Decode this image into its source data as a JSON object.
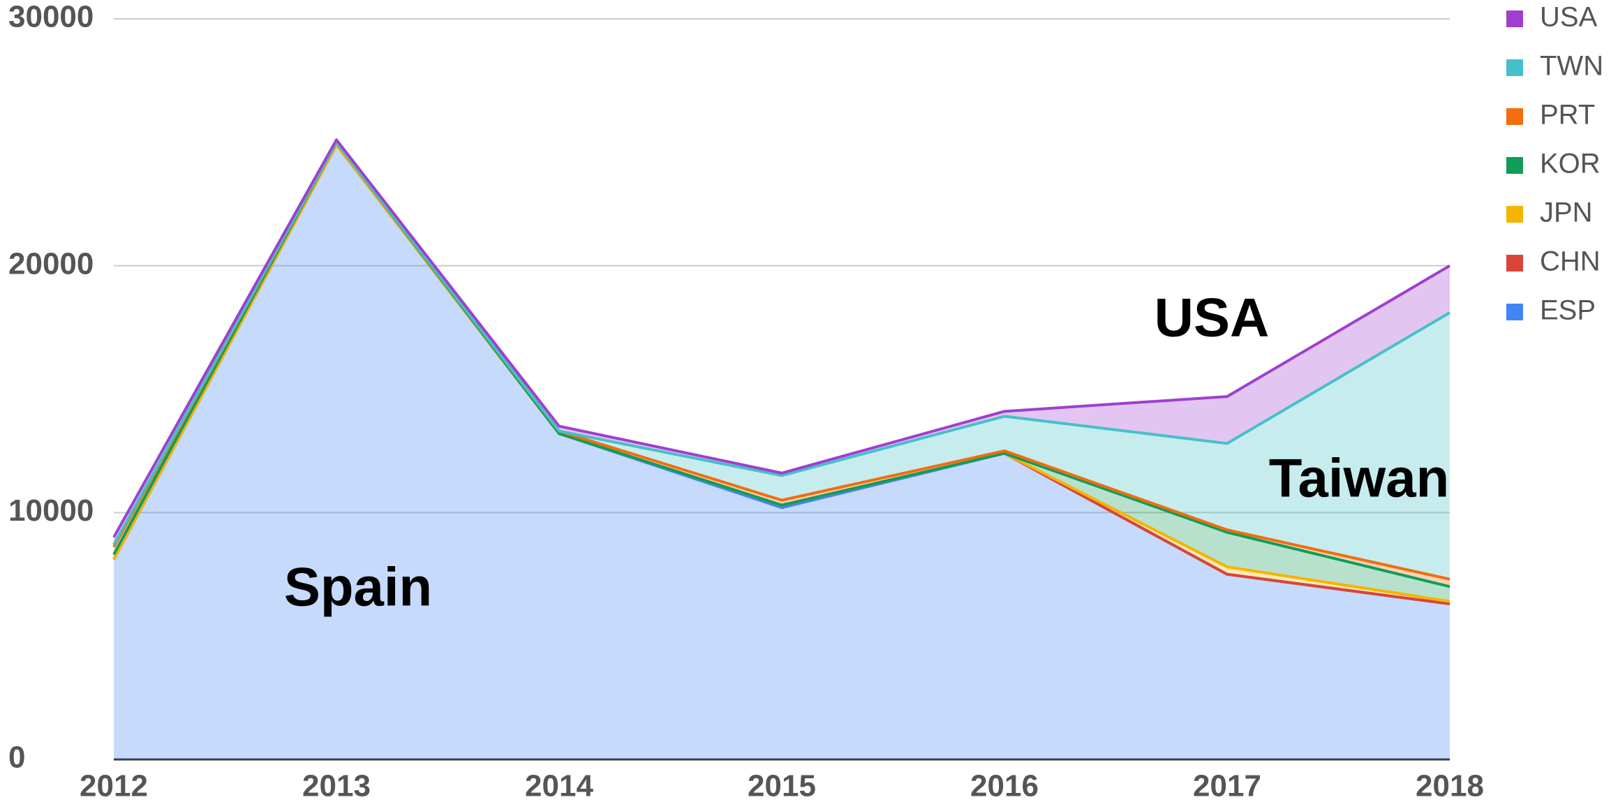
{
  "chart_data": {
    "type": "stacked_area",
    "categories": [
      "2012",
      "2013",
      "2014",
      "2015",
      "2016",
      "2017",
      "2018"
    ],
    "series": [
      {
        "name": "USA",
        "color": "#9f3fd0",
        "values": [
          300,
          100,
          200,
          100,
          200,
          1900,
          1900
        ]
      },
      {
        "name": "TWN",
        "color": "#45c0c8",
        "values": [
          100,
          0,
          0,
          1000,
          1400,
          3500,
          10800
        ]
      },
      {
        "name": "PRT",
        "color": "#f36c0e",
        "values": [
          300,
          0,
          100,
          200,
          100,
          100,
          300
        ]
      },
      {
        "name": "KOR",
        "color": "#0f9d58",
        "values": [
          200,
          100,
          0,
          0,
          0,
          1400,
          600
        ]
      },
      {
        "name": "JPN",
        "color": "#f4b400",
        "values": [
          0,
          0,
          0,
          0,
          0,
          300,
          100
        ]
      },
      {
        "name": "CHN",
        "color": "#db4437",
        "values": [
          0,
          0,
          0,
          100,
          0,
          0,
          0
        ]
      },
      {
        "name": "ESP",
        "color": "#4285f4",
        "values": [
          8100,
          24900,
          13200,
          10200,
          12400,
          7500,
          6300
        ]
      }
    ],
    "ylim": [
      0,
      30000
    ],
    "yticks": [
      0,
      10000,
      20000,
      30000
    ],
    "grid": true,
    "legend": "right",
    "annotations": [
      "Spain",
      "USA",
      "Taiwan"
    ]
  }
}
